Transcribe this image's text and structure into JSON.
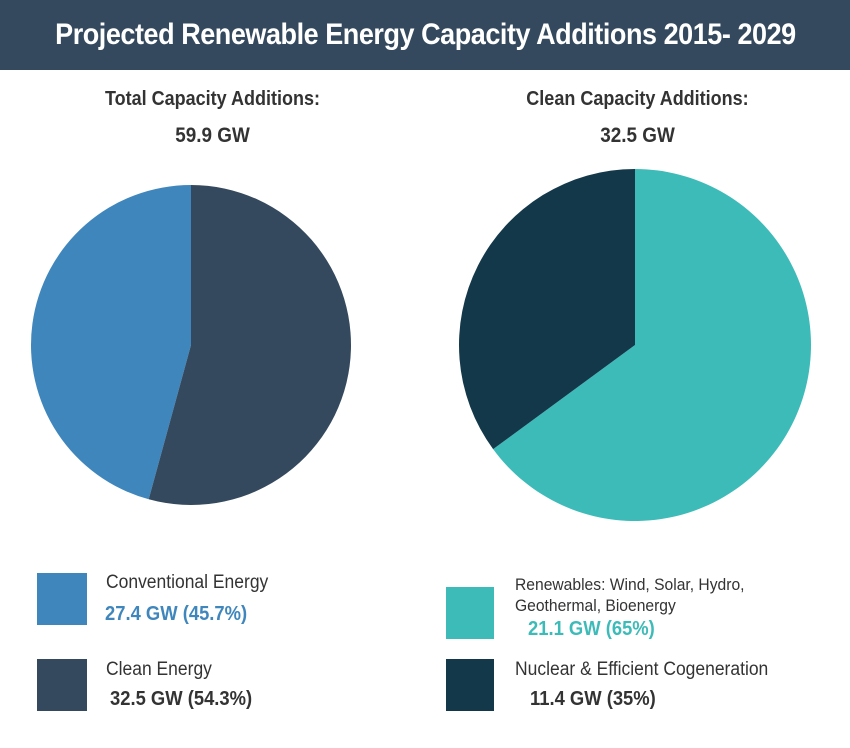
{
  "header": {
    "title": "Projected Renewable Energy Capacity Additions 2015- 2029"
  },
  "colors": {
    "header_bg": "#34495e",
    "conventional": "#3f86bd",
    "clean": "#34495e",
    "renewables": "#3dbbb8",
    "nuclear": "#12384a"
  },
  "chart_data": [
    {
      "type": "pie",
      "title": "Total Capacity Additions:",
      "subtitle": "59.9 GW",
      "slices": [
        {
          "label": "Conventional Energy",
          "value": 27.4,
          "percent": 45.7,
          "value_text": "27.4 GW (45.7%)",
          "color": "#3f86bd"
        },
        {
          "label": "Clean Energy",
          "value": 32.5,
          "percent": 54.3,
          "value_text": "32.5 GW (54.3%)",
          "color": "#34495e"
        }
      ]
    },
    {
      "type": "pie",
      "title": "Clean Capacity Additions:",
      "subtitle": "32.5 GW",
      "slices": [
        {
          "label": "Renewables: Wind, Solar, Hydro,",
          "label_line2": "Geothermal, Bioenergy",
          "value": 21.1,
          "percent": 65,
          "value_text": "21.1 GW (65%)",
          "color": "#3dbbb8"
        },
        {
          "label": "Nuclear & Efficient Cogeneration",
          "value": 11.4,
          "percent": 35,
          "value_text": "11.4 GW (35%)",
          "color": "#12384a"
        }
      ]
    }
  ]
}
